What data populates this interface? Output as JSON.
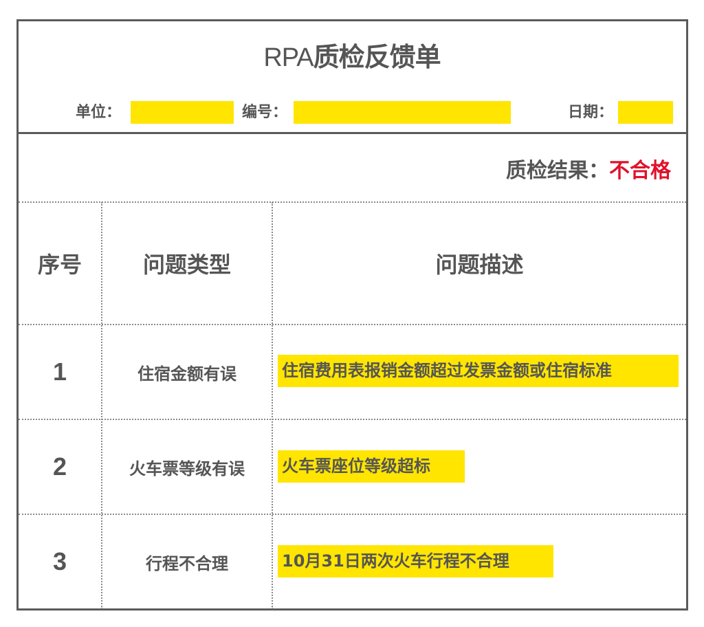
{
  "title_latin": "RPA",
  "title_cjk": "质检反馈单",
  "fields": {
    "unit_label": "单位：",
    "number_label": "编号：",
    "date_label": "日期："
  },
  "result": {
    "label": "质检结果：",
    "value": "不合格",
    "value_color": "#e0112b"
  },
  "highlight_color": "#ffe500",
  "table": {
    "headers": [
      "序号",
      "问题类型",
      "问题描述"
    ],
    "rows": [
      {
        "no": "1",
        "type": "住宿金额有误",
        "desc": "住宿费用表报销金额超过发票金额或住宿标准"
      },
      {
        "no": "2",
        "type": "火车票等级有误",
        "desc": "火车票座位等级超标"
      },
      {
        "no": "3",
        "type": "行程不合理",
        "desc": "10月31日两次火车行程不合理"
      }
    ]
  }
}
